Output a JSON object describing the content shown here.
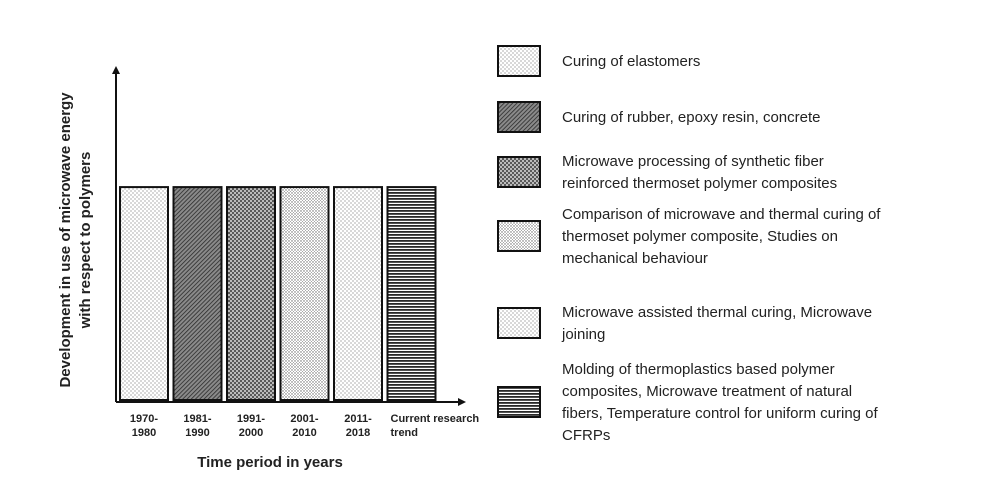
{
  "chart_data": {
    "type": "bar",
    "xlabel": "Time period in years",
    "ylabel_lines": [
      "Development in use of microwave energy",
      "with respect to polymers"
    ],
    "categories": [
      [
        "1970-",
        "1980"
      ],
      [
        "1981-",
        "1990"
      ],
      [
        "1991-",
        "2000"
      ],
      [
        "2001-",
        "2010"
      ],
      [
        "2011-",
        "2018"
      ],
      [
        "Current research",
        "trend"
      ]
    ],
    "values": [
      1,
      1,
      1,
      1,
      1,
      1
    ],
    "ylim": [
      0,
      1.55
    ],
    "grid": false,
    "bar_patterns": [
      "dots",
      "diagonal",
      "crosshatch",
      "dense-dots",
      "dots",
      "horizontal"
    ],
    "legend_position": "right",
    "legend": [
      {
        "pattern": "dots",
        "lines": [
          "Curing of elastomers"
        ]
      },
      {
        "pattern": "diagonal",
        "lines": [
          "Curing of rubber, epoxy resin, concrete"
        ]
      },
      {
        "pattern": "crosshatch",
        "lines": [
          "Microwave processing of synthetic fiber",
          "reinforced thermoset polymer composites"
        ]
      },
      {
        "pattern": "dense-dots",
        "lines": [
          "Comparison of microwave and thermal curing of",
          "thermoset polymer composite, Studies on",
          "mechanical behaviour"
        ]
      },
      {
        "pattern": "dots",
        "lines": [
          "Microwave assisted thermal curing, Microwave",
          "joining"
        ]
      },
      {
        "pattern": "horizontal",
        "lines": [
          "Molding of thermoplastics based polymer",
          "composites, Microwave treatment of natural",
          "fibers, Temperature control for uniform curing of",
          "CFRPs"
        ]
      }
    ]
  }
}
